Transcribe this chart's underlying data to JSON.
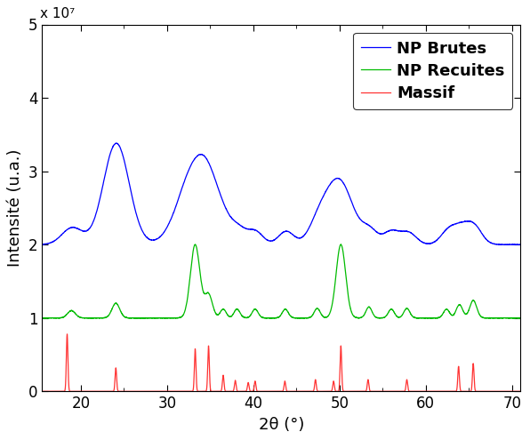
{
  "xlabel": "2θ (°)",
  "ylabel": "Intensité (u.a.)",
  "xlim": [
    15.5,
    71
  ],
  "ylim": [
    0,
    50000000.0
  ],
  "yticks": [
    0,
    10000000.0,
    20000000.0,
    30000000.0,
    40000000.0,
    50000000.0
  ],
  "ytick_labels": [
    "0",
    "1",
    "2",
    "3",
    "4",
    "5"
  ],
  "xticks": [
    20,
    30,
    40,
    50,
    60,
    70
  ],
  "yexp_label": "x 10⁷",
  "legend_labels": [
    "NP Brutes",
    "NP Recuites",
    "Massif"
  ],
  "colors_blue": "#0000FF",
  "colors_green": "#00BB00",
  "colors_red": "#FF3333",
  "blue_baseline": 20000000.0,
  "green_baseline": 10000000.0,
  "red_baseline": 0.0,
  "figsize": [
    5.96,
    4.95
  ],
  "dpi": 100,
  "blue_peaks_pos": [
    19.0,
    24.1,
    33.3,
    34.9,
    36.5,
    38.2,
    40.2,
    43.8,
    47.5,
    49.9,
    53.5,
    56.0,
    58.0,
    62.6,
    64.1,
    65.6
  ],
  "blue_peaks_height": [
    2300000.0,
    13800000.0,
    10800000.0,
    3000000.0,
    1800000.0,
    2000000.0,
    1800000.0,
    1800000.0,
    2200000.0,
    8800000.0,
    1800000.0,
    1800000.0,
    1600000.0,
    1800000.0,
    2000000.0,
    2400000.0
  ],
  "blue_peaks_width": [
    1.2,
    1.5,
    1.9,
    1.1,
    0.9,
    0.9,
    0.9,
    0.9,
    1.1,
    1.6,
    0.9,
    0.9,
    0.9,
    0.9,
    0.9,
    0.9
  ],
  "green_peaks_pos": [
    18.9,
    24.05,
    33.25,
    34.8,
    36.5,
    38.1,
    40.2,
    43.7,
    47.4,
    50.15,
    53.4,
    56.0,
    57.8,
    62.4,
    63.9,
    65.5
  ],
  "green_peaks_height": [
    1000000.0,
    2000000.0,
    10000000.0,
    3200000.0,
    1200000.0,
    1200000.0,
    1200000.0,
    1200000.0,
    1300000.0,
    10000000.0,
    1500000.0,
    1200000.0,
    1300000.0,
    1200000.0,
    1800000.0,
    2400000.0
  ],
  "green_peaks_width": [
    0.45,
    0.45,
    0.55,
    0.45,
    0.35,
    0.35,
    0.35,
    0.35,
    0.35,
    0.55,
    0.35,
    0.35,
    0.35,
    0.35,
    0.38,
    0.4
  ],
  "red_peaks_pos": [
    18.4,
    24.05,
    33.25,
    34.8,
    36.5,
    37.9,
    39.4,
    40.2,
    43.65,
    47.2,
    49.3,
    50.15,
    53.3,
    57.8,
    63.8,
    65.5
  ],
  "red_peaks_height": [
    7800000.0,
    3200000.0,
    5800000.0,
    6200000.0,
    2200000.0,
    1500000.0,
    1200000.0,
    1400000.0,
    1400000.0,
    1600000.0,
    1400000.0,
    6200000.0,
    1600000.0,
    1600000.0,
    3400000.0,
    3800000.0
  ],
  "red_peaks_width": [
    0.09,
    0.09,
    0.09,
    0.09,
    0.09,
    0.09,
    0.09,
    0.09,
    0.09,
    0.09,
    0.09,
    0.09,
    0.09,
    0.09,
    0.09,
    0.09
  ]
}
